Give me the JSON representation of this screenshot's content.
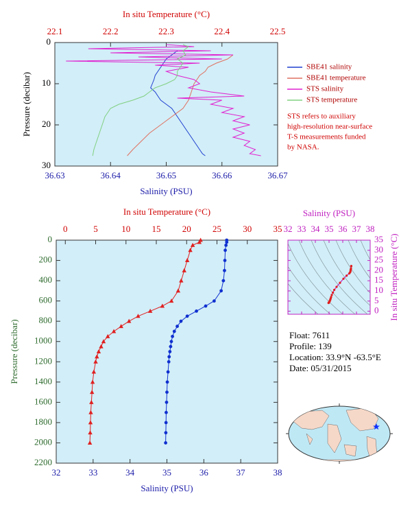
{
  "chart_data": [
    {
      "type": "line",
      "x2label": "In situ Temperature (°C)",
      "xlabel": "Salinity (PSU)",
      "ylabel": "Pressure (decibar)",
      "xlim": [
        36.63,
        36.67
      ],
      "xticks": [
        36.63,
        36.64,
        36.65,
        36.66,
        36.67
      ],
      "x2lim": [
        22.1,
        22.5
      ],
      "x2ticks": [
        22.1,
        22.2,
        22.3,
        22.4,
        22.5
      ],
      "ylim": [
        0,
        30
      ],
      "yticks": [
        0,
        10,
        20,
        30
      ],
      "y_inverted": true,
      "x_color": "#1a1aa8",
      "x2_color": "#d00000",
      "y_color": "#000000",
      "background": "#d2eef8",
      "legend": "right",
      "series": [
        {
          "name": "SBE41 salinity",
          "color": "#1f3fd0",
          "axis": "bottom",
          "y": [
            2,
            3,
            4,
            5,
            6,
            7,
            8,
            9,
            10,
            11,
            12,
            13,
            14,
            15,
            16,
            17,
            18,
            19,
            20,
            21,
            22,
            23,
            24,
            25,
            26,
            27,
            27.5
          ],
          "values": [
            36.652,
            36.651,
            36.65,
            36.6495,
            36.649,
            36.6485,
            36.648,
            36.6478,
            36.6475,
            36.6472,
            36.648,
            36.6485,
            36.649,
            36.65,
            36.651,
            36.6515,
            36.652,
            36.6525,
            36.653,
            36.6535,
            36.654,
            36.6545,
            36.655,
            36.6555,
            36.656,
            36.6565,
            36.657
          ]
        },
        {
          "name": "SBE41 temperature",
          "color": "#e07060",
          "axis": "top",
          "y": [
            3,
            4,
            5,
            6,
            7,
            8,
            9,
            10,
            12,
            14,
            16,
            18,
            20,
            22,
            24,
            26,
            27.5
          ],
          "values": [
            22.42,
            22.41,
            22.39,
            22.375,
            22.37,
            22.36,
            22.355,
            22.35,
            22.345,
            22.34,
            22.33,
            22.31,
            22.29,
            22.27,
            22.255,
            22.24,
            22.23
          ]
        },
        {
          "name": "STS salinity",
          "color": "#e020d0",
          "axis": "bottom",
          "y": [
            0.5,
            1,
            1.5,
            2,
            2.5,
            3,
            3.5,
            4,
            4.5,
            5,
            5.5,
            6,
            7,
            8,
            9,
            10,
            11,
            12,
            13,
            13.5,
            14,
            15,
            16,
            17,
            18,
            19,
            20,
            21,
            22,
            23,
            24,
            25,
            26,
            27,
            27.5
          ],
          "values": [
            36.65,
            36.655,
            36.636,
            36.658,
            36.64,
            36.662,
            36.645,
            36.66,
            36.632,
            36.656,
            36.648,
            36.654,
            36.65,
            36.652,
            36.655,
            36.656,
            36.654,
            36.658,
            36.664,
            36.652,
            36.66,
            36.658,
            36.662,
            36.66,
            36.664,
            36.662,
            36.665,
            36.662,
            36.664,
            36.662,
            36.665,
            36.664,
            36.666,
            36.665,
            36.667
          ]
        },
        {
          "name": "STS temperature",
          "color": "#80d080",
          "axis": "top",
          "y": [
            0.5,
            1,
            2,
            3,
            4,
            5,
            6,
            7,
            8,
            9,
            10,
            11,
            12,
            13,
            14,
            15,
            16,
            17,
            18,
            20,
            22,
            24,
            26,
            27.5
          ],
          "values": [
            22.33,
            22.34,
            22.33,
            22.335,
            22.32,
            22.33,
            22.325,
            22.32,
            22.32,
            22.315,
            22.3,
            22.28,
            22.27,
            22.26,
            22.24,
            22.215,
            22.2,
            22.195,
            22.19,
            22.185,
            22.18,
            22.175,
            22.17,
            22.168
          ]
        }
      ],
      "note": [
        "STS refers to auxiliary",
        "high-resolution near-surface",
        "T-S measurements funded",
        "by NASA."
      ]
    },
    {
      "type": "line",
      "x2label": "In situ Temperature (°C)",
      "xlabel": "Salinity (PSU)",
      "ylabel": "Pressure (decibar)",
      "xlim": [
        32,
        38
      ],
      "xticks": [
        32,
        33,
        34,
        35,
        36,
        37,
        38
      ],
      "x2lim": [
        -1.5,
        35
      ],
      "x2ticks": [
        0,
        5,
        10,
        15,
        20,
        25,
        30,
        35
      ],
      "ylim": [
        0,
        2200
      ],
      "yticks": [
        0,
        200,
        400,
        600,
        800,
        1000,
        1200,
        1400,
        1600,
        1800,
        2000,
        2200
      ],
      "y_inverted": true,
      "x_color": "#1a1aa8",
      "x2_color": "#d00000",
      "y_color": "#2e6b2e",
      "background": "#d2eef8",
      "series": [
        {
          "color": "#e02020",
          "axis": "top",
          "marker": "triangle",
          "y": [
            0,
            20,
            50,
            100,
            200,
            300,
            400,
            500,
            600,
            650,
            700,
            750,
            800,
            850,
            900,
            950,
            1000,
            1050,
            1100,
            1150,
            1200,
            1300,
            1400,
            1500,
            1600,
            1700,
            1800,
            1900,
            2000
          ],
          "values": [
            22.3,
            22.1,
            21.0,
            20.6,
            20.1,
            19.6,
            19.1,
            18.6,
            17.5,
            16.0,
            14.0,
            12.0,
            10.5,
            9.2,
            8.0,
            7.0,
            6.3,
            5.9,
            5.5,
            5.2,
            5.0,
            4.7,
            4.5,
            4.4,
            4.3,
            4.2,
            4.15,
            4.1,
            4.05
          ]
        },
        {
          "color": "#1030d0",
          "axis": "bottom",
          "marker": "circle",
          "y": [
            0,
            20,
            50,
            100,
            200,
            300,
            400,
            500,
            600,
            650,
            700,
            750,
            800,
            850,
            900,
            950,
            1000,
            1050,
            1100,
            1150,
            1200,
            1300,
            1400,
            1500,
            1600,
            1700,
            1800,
            1900,
            2000
          ],
          "values": [
            36.62,
            36.62,
            36.6,
            36.58,
            36.57,
            36.56,
            36.53,
            36.47,
            36.28,
            36.05,
            35.8,
            35.55,
            35.38,
            35.28,
            35.2,
            35.15,
            35.12,
            35.1,
            35.08,
            35.06,
            35.05,
            35.03,
            35.01,
            35.0,
            34.99,
            34.98,
            34.975,
            34.97,
            34.965
          ]
        }
      ]
    },
    {
      "type": "ts",
      "xlabel": "Salinity (PSU)",
      "ylabel": "In situ Temperature (°C)",
      "xlim": [
        32,
        38
      ],
      "xticks": [
        32,
        33,
        34,
        35,
        36,
        37,
        38
      ],
      "ylim": [
        -1.5,
        35
      ],
      "yticks": [
        0,
        5,
        10,
        15,
        20,
        25,
        30,
        35
      ],
      "color": "#c020c0",
      "background": "#d2eef8"
    }
  ],
  "float_info": [
    "Float:  7611",
    "Profile:  139",
    "Location:  33.9°N  -63.5°E",
    "Date:  05/31/2015"
  ]
}
